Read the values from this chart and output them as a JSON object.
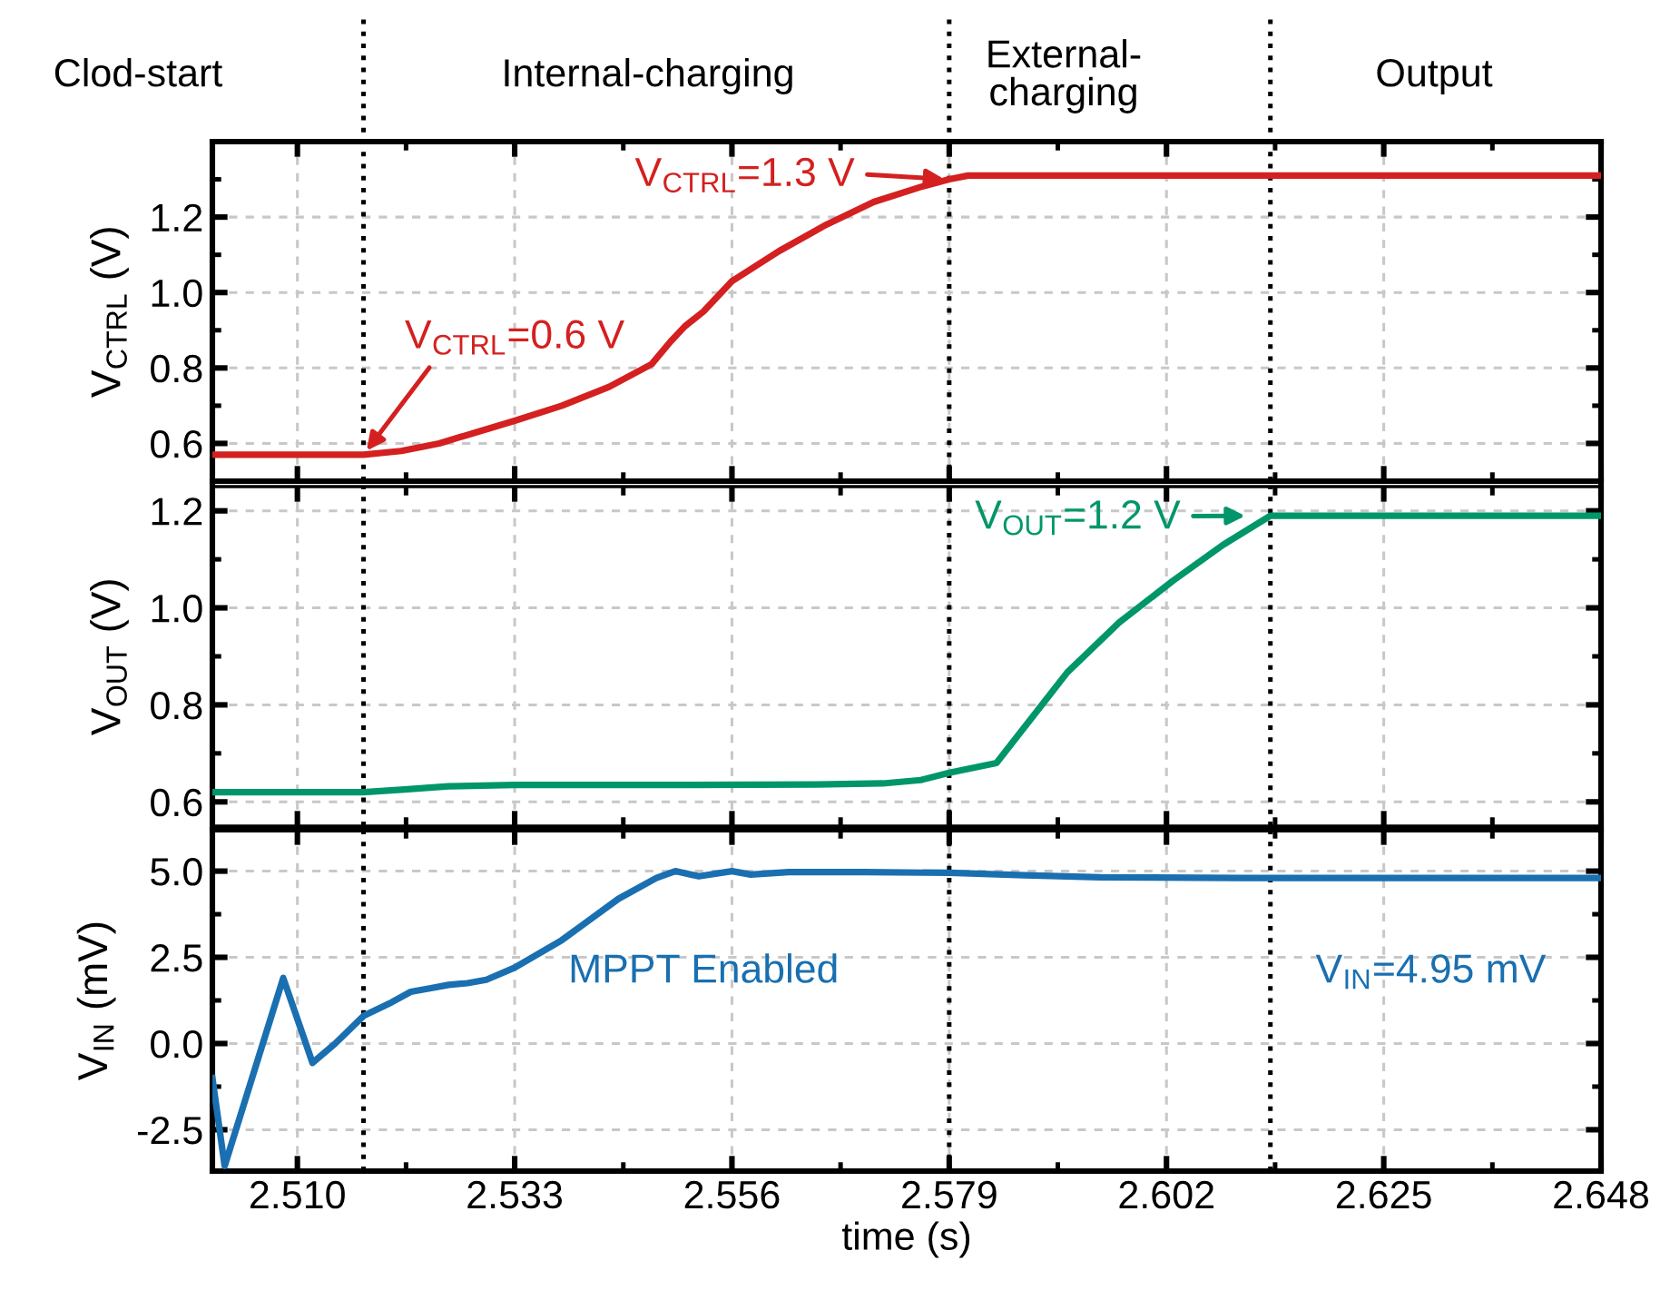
{
  "chart_data": [
    {
      "type": "line",
      "ylabel": "V$_{CTRL}$ (V)",
      "annotations": [
        "Clod-start",
        "Internal-charging",
        "External-\ncharging",
        "Output",
        {
          "text": "V$_{CTRL}$=0.6 V",
          "x": 2.517,
          "y": 0.57
        },
        {
          "text": "V$_{CTRL}$=1.3 V",
          "x": 2.579,
          "y": 1.3
        }
      ],
      "x": [
        2.501,
        2.51,
        2.517,
        2.521,
        2.525,
        2.529,
        2.533,
        2.538,
        2.543,
        2.5475,
        2.5495,
        2.551,
        2.553,
        2.556,
        2.561,
        2.566,
        2.571,
        2.576,
        2.579,
        2.581,
        2.59,
        2.6,
        2.61,
        2.62,
        2.63,
        2.64,
        2.648
      ],
      "series": [
        {
          "color": "#d42020",
          "values": [
            0.57,
            0.57,
            0.57,
            0.58,
            0.6,
            0.63,
            0.66,
            0.7,
            0.75,
            0.81,
            0.87,
            0.91,
            0.95,
            1.03,
            1.11,
            1.18,
            1.24,
            1.28,
            1.3,
            1.31,
            1.31,
            1.31,
            1.31,
            1.31,
            1.31,
            1.31,
            1.31
          ]
        }
      ],
      "xlim": [
        2.501,
        2.648
      ],
      "ylim": [
        0.5,
        1.4
      ],
      "yticks": [
        {
          "value": 0.6,
          "label": "0.6"
        },
        {
          "value": 0.8,
          "label": "0.8"
        },
        {
          "value": 1.0,
          "label": "1.0"
        },
        {
          "value": 1.2,
          "label": "1.2"
        }
      ],
      "xticks": [
        2.51,
        2.533,
        2.556,
        2.579,
        2.602,
        2.625,
        2.648
      ],
      "ref_lines": [
        {
          "axis": "x",
          "value": 2.517,
          "color": "#000000",
          "line_style": "dotted"
        },
        {
          "axis": "x",
          "value": 2.579,
          "color": "#000000",
          "line_style": "dotted"
        },
        {
          "axis": "x",
          "value": 2.613,
          "color": "#000000",
          "line_style": "dotted"
        }
      ],
      "grid": true,
      "tick_labels": "y",
      "line_style": "solid"
    },
    {
      "type": "line",
      "ylabel": "V$_{OUT}$ (V)",
      "annotations": [
        {
          "text": "V$_{OUT}$=1.2 V",
          "x": 2.613,
          "y": 1.19
        }
      ],
      "x": [
        2.501,
        2.517,
        2.521,
        2.526,
        2.533,
        2.55,
        2.565,
        2.572,
        2.576,
        2.579,
        2.584,
        2.5915,
        2.597,
        2.6027,
        2.608,
        2.613,
        2.62,
        2.63,
        2.64,
        2.648
      ],
      "series": [
        {
          "color": "#00966a",
          "values": [
            0.62,
            0.62,
            0.625,
            0.632,
            0.635,
            0.635,
            0.636,
            0.638,
            0.645,
            0.66,
            0.68,
            0.867,
            0.97,
            1.056,
            1.13,
            1.19,
            1.19,
            1.19,
            1.19,
            1.19
          ]
        }
      ],
      "xlim": [
        2.501,
        2.648
      ],
      "ylim": [
        0.55,
        1.25
      ],
      "yticks": [
        {
          "value": 0.6,
          "label": "0.6"
        },
        {
          "value": 0.8,
          "label": "0.8"
        },
        {
          "value": 1.0,
          "label": "1.0"
        },
        {
          "value": 1.2,
          "label": "1.2"
        }
      ],
      "xticks": [
        2.51,
        2.533,
        2.556,
        2.579,
        2.602,
        2.625,
        2.648
      ],
      "ref_lines": [
        {
          "axis": "x",
          "value": 2.517,
          "color": "#000000",
          "line_style": "dotted"
        },
        {
          "axis": "x",
          "value": 2.579,
          "color": "#000000",
          "line_style": "dotted"
        },
        {
          "axis": "x",
          "value": 2.613,
          "color": "#000000",
          "line_style": "dotted"
        }
      ],
      "grid": true,
      "tick_labels": "y",
      "line_style": "solid"
    },
    {
      "type": "line",
      "ylabel": "V$_{IN}$ (mV)",
      "xlabel": "time (s)",
      "annotations": [
        "MPPT Enabled",
        "V$_{IN}$=4.95 mV"
      ],
      "x": [
        2.501,
        2.5023,
        2.5085,
        2.5116,
        2.514,
        2.517,
        2.52,
        2.522,
        2.524,
        2.526,
        2.528,
        2.53,
        2.533,
        2.538,
        2.544,
        2.548,
        2.55,
        2.5525,
        2.556,
        2.558,
        2.562,
        2.57,
        2.579,
        2.587,
        2.595,
        2.61,
        2.63,
        2.648
      ],
      "series": [
        {
          "color": "#1a6fb0",
          "values": [
            -1.0,
            -3.55,
            1.9,
            -0.56,
            0.0,
            0.8,
            1.2,
            1.5,
            1.6,
            1.7,
            1.75,
            1.85,
            2.2,
            3.0,
            4.2,
            4.8,
            5.0,
            4.85,
            5.0,
            4.9,
            4.97,
            4.97,
            4.95,
            4.88,
            4.82,
            4.8,
            4.8,
            4.8
          ]
        }
      ],
      "xlim": [
        2.501,
        2.648
      ],
      "ylim": [
        -3.7,
        6.2
      ],
      "yticks": [
        {
          "value": -2.5,
          "label": "-2.5"
        },
        {
          "value": 0.0,
          "label": "0.0"
        },
        {
          "value": 2.5,
          "label": "2.5"
        },
        {
          "value": 5.0,
          "label": "5.0"
        }
      ],
      "xticks": [
        {
          "value": 2.51,
          "label": "2.510"
        },
        {
          "value": 2.533,
          "label": "2.533"
        },
        {
          "value": 2.556,
          "label": "2.556"
        },
        {
          "value": 2.579,
          "label": "2.579"
        },
        {
          "value": 2.602,
          "label": "2.602"
        },
        {
          "value": 2.625,
          "label": "2.625"
        },
        {
          "value": 2.648,
          "label": "2.648"
        }
      ],
      "ref_lines": [
        {
          "axis": "x",
          "value": 2.517,
          "color": "#000000",
          "line_style": "dotted"
        },
        {
          "axis": "x",
          "value": 2.579,
          "color": "#000000",
          "line_style": "dotted"
        },
        {
          "axis": "x",
          "value": 2.613,
          "color": "#000000",
          "line_style": "dotted"
        }
      ],
      "grid": true,
      "line_style": "solid"
    }
  ]
}
